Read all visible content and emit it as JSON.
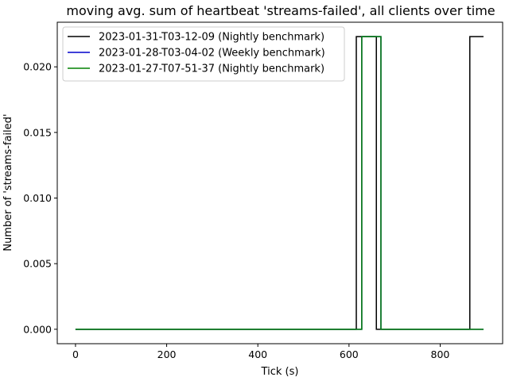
{
  "chart_data": {
    "type": "line",
    "title": "moving avg. sum of heartbeat 'streams-failed', all clients over time",
    "xlabel": "Tick (s)",
    "ylabel": "Number of 'streams-failed'",
    "xlim": [
      -40,
      937
    ],
    "ylim": [
      -0.0011,
      0.0234
    ],
    "xticks": [
      0,
      200,
      400,
      600,
      800
    ],
    "yticks": [
      0.0,
      0.005,
      0.01,
      0.015,
      0.02
    ],
    "xtick_labels": [
      "0",
      "200",
      "400",
      "600",
      "800"
    ],
    "ytick_labels": [
      "0.000",
      "0.005",
      "0.010",
      "0.015",
      "0.020"
    ],
    "grid": false,
    "legend_position": "top-left",
    "series": [
      {
        "name": "2023-01-31-T03-12-09 (Nightly benchmark)",
        "color": "#000000",
        "x": [
          0,
          616,
          616,
          660,
          660,
          865,
          865,
          895
        ],
        "y": [
          0,
          0,
          0.0223,
          0.0223,
          0,
          0,
          0.0223,
          0.0223
        ]
      },
      {
        "name": "2023-01-28-T03-04-02 (Weekly benchmark)",
        "color": "#0000cc",
        "x": [
          0,
          628,
          628,
          670,
          670,
          895
        ],
        "y": [
          0,
          0,
          0.0223,
          0.0223,
          0,
          0
        ]
      },
      {
        "name": "2023-01-27-T07-51-37 (Nightly benchmark)",
        "color": "#008000",
        "x": [
          0,
          628,
          628,
          670,
          670,
          895
        ],
        "y": [
          0,
          0,
          0.0223,
          0.0223,
          0,
          0
        ]
      }
    ]
  }
}
